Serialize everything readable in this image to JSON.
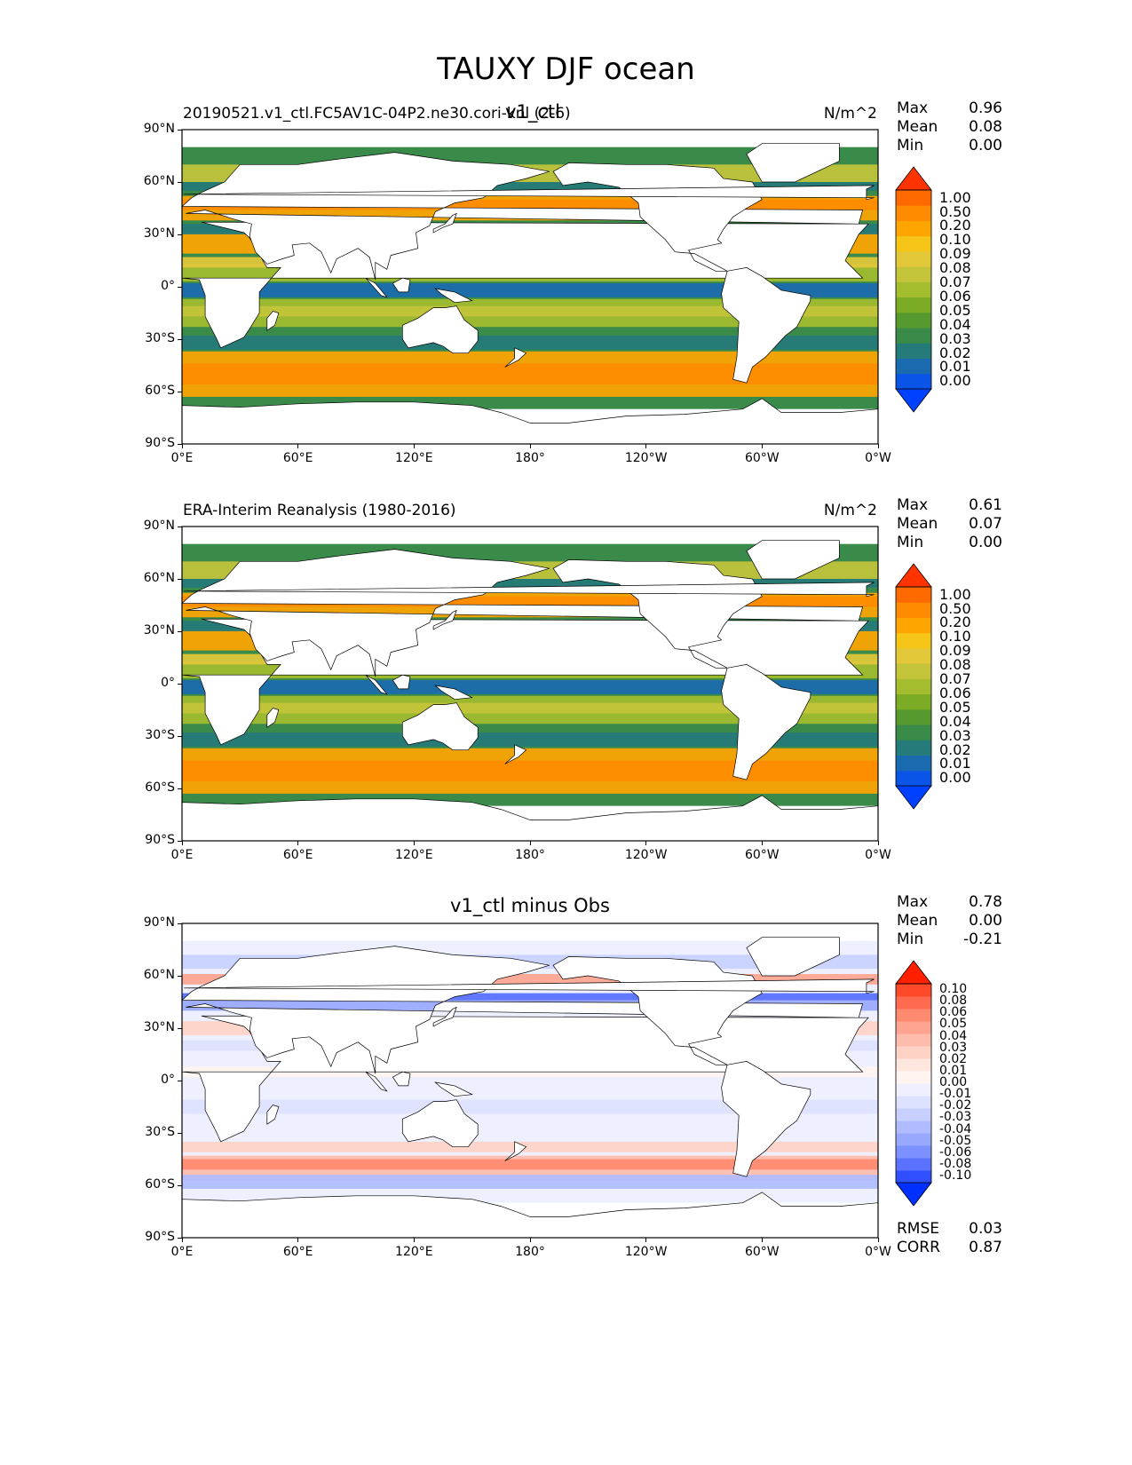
{
  "figure": {
    "suptitle": "TAUXY DJF ocean"
  },
  "chart_data": [
    {
      "type": "heatmap",
      "title_left": "20190521.v1_ctl.FC5AV1C-04P2.ne30.cori-knl (2-6)",
      "title_center": "v1_ctl",
      "units": "N/m^2",
      "stats": {
        "Max": "0.96",
        "Mean": "0.08",
        "Min": "0.00"
      },
      "xticks": [
        "0°E",
        "60°E",
        "120°E",
        "180°",
        "120°W",
        "60°W",
        "0°W"
      ],
      "yticks": [
        "90°N",
        "60°N",
        "30°N",
        "0°",
        "30°S",
        "60°S",
        "90°S"
      ],
      "xlim": [
        0,
        360
      ],
      "ylim": [
        -90,
        90
      ],
      "colorbar": {
        "levels": [
          "1.00",
          "0.50",
          "0.20",
          "0.10",
          "0.09",
          "0.08",
          "0.07",
          "0.06",
          "0.05",
          "0.04",
          "0.03",
          "0.02",
          "0.01",
          "0.00"
        ],
        "colors": [
          "#ff3300",
          "#ff6a00",
          "#ff8c00",
          "#ffa500",
          "#f5c518",
          "#e3c83a",
          "#c4c43a",
          "#a3bd2e",
          "#7cab26",
          "#56992e",
          "#3a8a4a",
          "#257a7a",
          "#1a6ab0",
          "#0a55e8",
          "#0040ff"
        ]
      }
    },
    {
      "type": "heatmap",
      "title_left": "ERA-Interim Reanalysis (1980-2016)",
      "units": "N/m^2",
      "stats": {
        "Max": "0.61",
        "Mean": "0.07",
        "Min": "0.00"
      },
      "xticks": [
        "0°E",
        "60°E",
        "120°E",
        "180°",
        "120°W",
        "60°W",
        "0°W"
      ],
      "yticks": [
        "90°N",
        "60°N",
        "30°N",
        "0°",
        "30°S",
        "60°S",
        "90°S"
      ],
      "xlim": [
        0,
        360
      ],
      "ylim": [
        -90,
        90
      ],
      "colorbar": {
        "levels": [
          "1.00",
          "0.50",
          "0.20",
          "0.10",
          "0.09",
          "0.08",
          "0.07",
          "0.06",
          "0.05",
          "0.04",
          "0.03",
          "0.02",
          "0.01",
          "0.00"
        ],
        "colors": [
          "#ff3300",
          "#ff6a00",
          "#ff8c00",
          "#ffa500",
          "#f5c518",
          "#e3c83a",
          "#c4c43a",
          "#a3bd2e",
          "#7cab26",
          "#56992e",
          "#3a8a4a",
          "#257a7a",
          "#1a6ab0",
          "#0a55e8",
          "#0040ff"
        ]
      }
    },
    {
      "type": "heatmap",
      "title_center": "v1_ctl minus Obs",
      "stats": {
        "Max": "0.78",
        "Mean": "0.00",
        "Min": "-0.21"
      },
      "metrics": {
        "RMSE": "0.03",
        "CORR": "0.87"
      },
      "xticks": [
        "0°E",
        "60°E",
        "120°E",
        "180°",
        "120°W",
        "60°W",
        "0°W"
      ],
      "yticks": [
        "90°N",
        "60°N",
        "30°N",
        "0°",
        "30°S",
        "60°S",
        "90°S"
      ],
      "xlim": [
        0,
        360
      ],
      "ylim": [
        -90,
        90
      ],
      "colorbar": {
        "levels": [
          "0.10",
          "0.08",
          "0.06",
          "0.05",
          "0.04",
          "0.03",
          "0.02",
          "0.01",
          "0.00",
          "-0.01",
          "-0.02",
          "-0.03",
          "-0.04",
          "-0.05",
          "-0.06",
          "-0.08",
          "-0.10"
        ],
        "colors": [
          "#ff2000",
          "#ff4a2a",
          "#ff6a50",
          "#ff8a70",
          "#ffa490",
          "#ffbcac",
          "#ffd2c6",
          "#ffe6de",
          "#fff4f0",
          "#eef0ff",
          "#dde2ff",
          "#c8d0ff",
          "#b0bcff",
          "#98a8ff",
          "#7c90ff",
          "#5a72ff",
          "#3050ff",
          "#0030ff"
        ]
      }
    }
  ]
}
